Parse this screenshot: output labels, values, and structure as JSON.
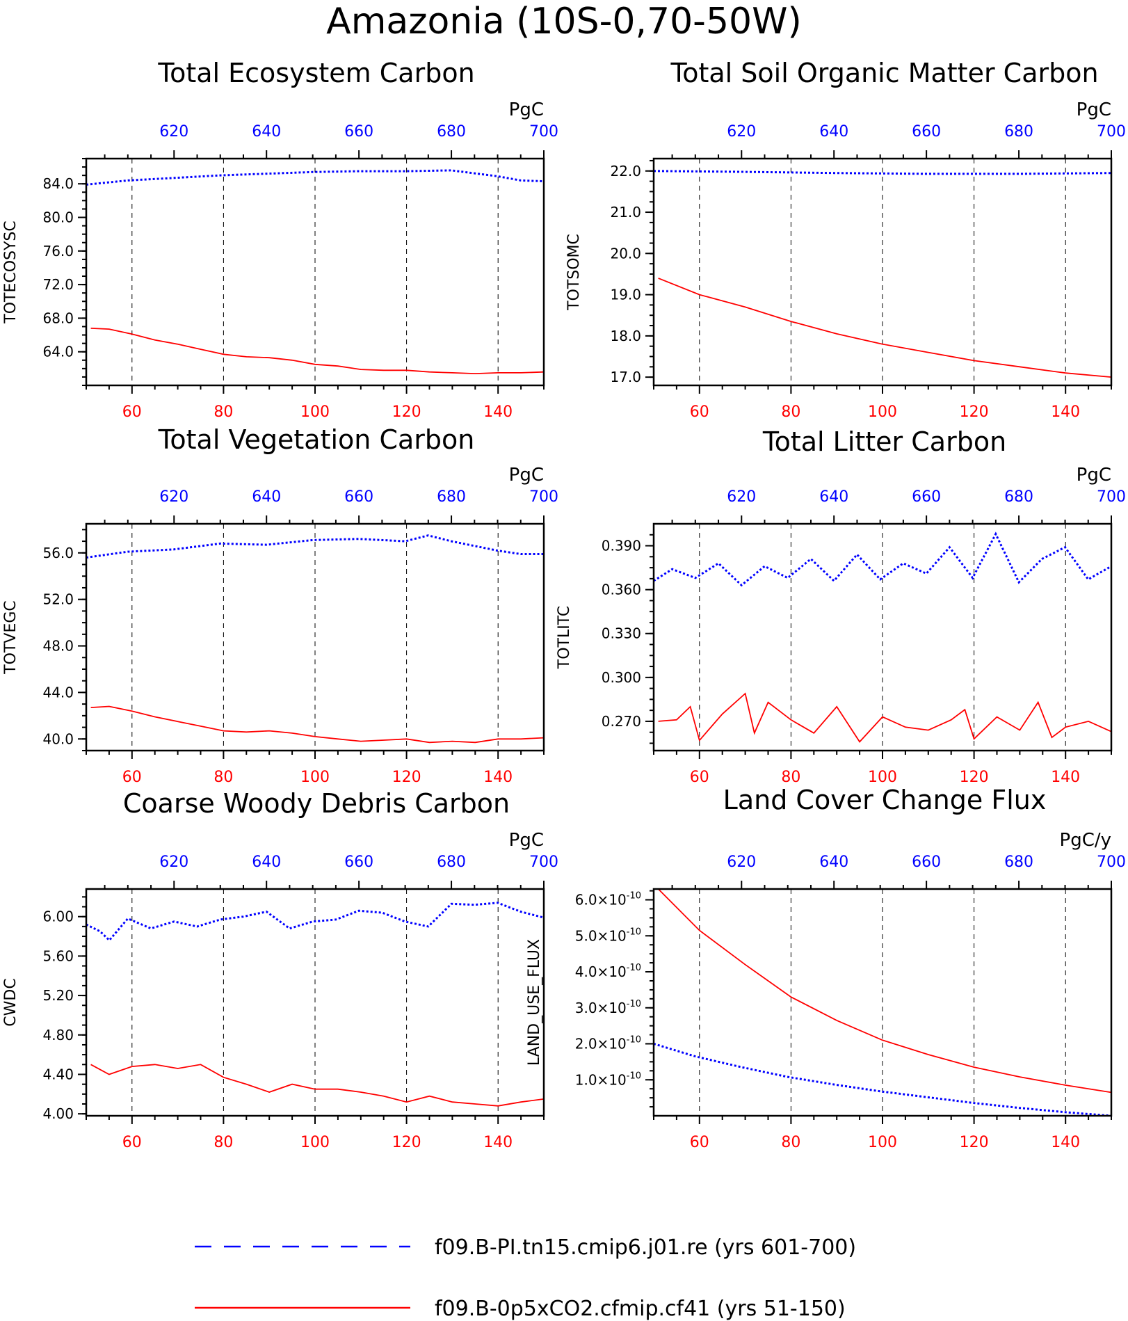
{
  "figure_title": "Amazonia (10S-0,70-50W)",
  "colors": {
    "series_a": "#0000ff",
    "series_b": "#ff0000",
    "frame": "#000000"
  },
  "legend": [
    {
      "label": "f09.B-PI.tn15.cmip6.j01.re (yrs 601-700)",
      "color": "#0000ff",
      "style": "dashed"
    },
    {
      "label": "f09.B-0p5xCO2.cfmip.cf41 (yrs 51-150)",
      "color": "#ff0000",
      "style": "solid"
    }
  ],
  "chart_data": [
    {
      "type": "line",
      "title": "Total Ecosystem Carbon",
      "ylabel": "TOTECOSYSC",
      "units": "PgC",
      "xlim": [
        50,
        150
      ],
      "xlim_top": [
        601,
        700
      ],
      "ylim": [
        60.0,
        87.0
      ],
      "x_ticks": [
        60,
        80,
        100,
        120,
        140
      ],
      "x_top_ticks": [
        620,
        640,
        660,
        680,
        700
      ],
      "y_ticks": [
        "64.0",
        "68.0",
        "72.0",
        "76.0",
        "80.0",
        "84.0"
      ],
      "grid": "vertical dashed",
      "series": [
        {
          "name": "f09.B-PI.tn15.cmip6.j01.re (yrs 601-700)",
          "axis": "top",
          "style": "dotted",
          "x": [
            601,
            610,
            620,
            630,
            640,
            650,
            660,
            670,
            680,
            690,
            695,
            700
          ],
          "y": [
            83.9,
            84.4,
            84.7,
            85.0,
            85.2,
            85.4,
            85.5,
            85.5,
            85.6,
            84.9,
            84.4,
            84.3
          ]
        },
        {
          "name": "f09.B-0p5xCO2.cfmip.cf41 (yrs 51-150)",
          "axis": "bottom",
          "style": "solid",
          "x": [
            51,
            55,
            60,
            65,
            70,
            75,
            80,
            85,
            90,
            95,
            100,
            105,
            110,
            115,
            120,
            125,
            130,
            135,
            140,
            145,
            150
          ],
          "y": [
            66.8,
            66.7,
            66.1,
            65.4,
            64.9,
            64.3,
            63.7,
            63.4,
            63.3,
            63.0,
            62.5,
            62.3,
            61.9,
            61.8,
            61.8,
            61.6,
            61.5,
            61.4,
            61.5,
            61.5,
            61.6
          ]
        }
      ]
    },
    {
      "type": "line",
      "title": "Total Soil Organic Matter Carbon",
      "ylabel": "TOTSOMC",
      "units": "PgC",
      "xlim": [
        50,
        150
      ],
      "xlim_top": [
        601,
        700
      ],
      "ylim": [
        16.8,
        22.3
      ],
      "x_ticks": [
        60,
        80,
        100,
        120,
        140
      ],
      "x_top_ticks": [
        620,
        640,
        660,
        680,
        700
      ],
      "y_ticks": [
        "17.0",
        "18.0",
        "19.0",
        "20.0",
        "21.0",
        "22.0"
      ],
      "grid": "vertical dashed",
      "series": [
        {
          "name": "f09.B-PI.tn15.cmip6.j01.re (yrs 601-700)",
          "axis": "top",
          "style": "dotted",
          "x": [
            601,
            620,
            640,
            660,
            680,
            700
          ],
          "y": [
            22.0,
            21.98,
            21.95,
            21.93,
            21.93,
            21.95
          ]
        },
        {
          "name": "f09.B-0p5xCO2.cfmip.cf41 (yrs 51-150)",
          "axis": "bottom",
          "style": "solid",
          "x": [
            51,
            60,
            70,
            80,
            90,
            100,
            110,
            120,
            130,
            140,
            150
          ],
          "y": [
            19.4,
            19.0,
            18.7,
            18.35,
            18.05,
            17.8,
            17.6,
            17.4,
            17.25,
            17.1,
            17.0
          ]
        }
      ]
    },
    {
      "type": "line",
      "title": "Total Vegetation Carbon",
      "ylabel": "TOTVEGC",
      "units": "PgC",
      "xlim": [
        50,
        150
      ],
      "xlim_top": [
        601,
        700
      ],
      "ylim": [
        39.0,
        58.5
      ],
      "x_ticks": [
        60,
        80,
        100,
        120,
        140
      ],
      "x_top_ticks": [
        620,
        640,
        660,
        680,
        700
      ],
      "y_ticks": [
        "40.0",
        "44.0",
        "48.0",
        "52.0",
        "56.0"
      ],
      "grid": "vertical dashed",
      "series": [
        {
          "name": "f09.B-PI.tn15.cmip6.j01.re (yrs 601-700)",
          "axis": "top",
          "style": "dotted",
          "x": [
            601,
            610,
            620,
            630,
            640,
            650,
            660,
            670,
            675,
            680,
            690,
            695,
            700
          ],
          "y": [
            55.6,
            56.1,
            56.3,
            56.8,
            56.7,
            57.1,
            57.2,
            57.0,
            57.5,
            57.0,
            56.2,
            55.9,
            55.9
          ]
        },
        {
          "name": "f09.B-0p5xCO2.cfmip.cf41 (yrs 51-150)",
          "axis": "bottom",
          "style": "solid",
          "x": [
            51,
            55,
            60,
            65,
            70,
            75,
            80,
            85,
            90,
            95,
            100,
            105,
            110,
            115,
            120,
            125,
            130,
            135,
            140,
            145,
            150
          ],
          "y": [
            42.7,
            42.8,
            42.4,
            41.9,
            41.5,
            41.1,
            40.7,
            40.6,
            40.7,
            40.5,
            40.2,
            40.0,
            39.8,
            39.9,
            40.0,
            39.7,
            39.8,
            39.7,
            40.0,
            40.0,
            40.1
          ]
        }
      ]
    },
    {
      "type": "line",
      "title": "Total Litter Carbon",
      "ylabel": "TOTLITC",
      "units": "PgC",
      "xlim": [
        50,
        150
      ],
      "xlim_top": [
        601,
        700
      ],
      "ylim": [
        0.25,
        0.405
      ],
      "x_ticks": [
        60,
        80,
        100,
        120,
        140
      ],
      "x_top_ticks": [
        620,
        640,
        660,
        680,
        700
      ],
      "y_ticks": [
        "0.270",
        "0.300",
        "0.330",
        "0.360",
        "0.390"
      ],
      "grid": "vertical dashed",
      "series": [
        {
          "name": "f09.B-PI.tn15.cmip6.j01.re (yrs 601-700)",
          "axis": "top",
          "style": "dotted",
          "x": [
            601,
            605,
            610,
            615,
            620,
            625,
            630,
            635,
            640,
            645,
            650,
            655,
            660,
            665,
            670,
            675,
            680,
            685,
            690,
            695,
            700
          ],
          "y": [
            0.366,
            0.374,
            0.368,
            0.378,
            0.363,
            0.376,
            0.368,
            0.381,
            0.366,
            0.384,
            0.367,
            0.378,
            0.371,
            0.389,
            0.368,
            0.398,
            0.365,
            0.381,
            0.389,
            0.367,
            0.376
          ]
        },
        {
          "name": "f09.B-0p5xCO2.cfmip.cf41 (yrs 51-150)",
          "axis": "bottom",
          "style": "solid",
          "x": [
            51,
            55,
            58,
            60,
            65,
            70,
            72,
            75,
            80,
            85,
            90,
            95,
            100,
            105,
            110,
            115,
            118,
            120,
            125,
            130,
            134,
            137,
            140,
            145,
            150
          ],
          "y": [
            0.27,
            0.271,
            0.28,
            0.257,
            0.275,
            0.289,
            0.262,
            0.283,
            0.271,
            0.262,
            0.28,
            0.256,
            0.273,
            0.266,
            0.264,
            0.271,
            0.278,
            0.258,
            0.273,
            0.264,
            0.283,
            0.259,
            0.266,
            0.27,
            0.263
          ]
        }
      ]
    },
    {
      "type": "line",
      "title": "Coarse Woody Debris Carbon",
      "ylabel": "CWDC",
      "units": "PgC",
      "xlim": [
        50,
        150
      ],
      "xlim_top": [
        601,
        700
      ],
      "ylim": [
        3.98,
        6.28
      ],
      "x_ticks": [
        60,
        80,
        100,
        120,
        140
      ],
      "x_top_ticks": [
        620,
        640,
        660,
        680,
        700
      ],
      "y_ticks": [
        "4.00",
        "4.40",
        "4.80",
        "5.20",
        "5.60",
        "6.00"
      ],
      "grid": "vertical dashed",
      "series": [
        {
          "name": "f09.B-PI.tn15.cmip6.j01.re (yrs 601-700)",
          "axis": "top",
          "style": "dotted",
          "x": [
            601,
            604,
            606,
            610,
            615,
            620,
            625,
            630,
            635,
            640,
            645,
            650,
            655,
            660,
            665,
            670,
            675,
            680,
            685,
            690,
            695,
            700
          ],
          "y": [
            5.92,
            5.85,
            5.76,
            5.98,
            5.88,
            5.95,
            5.9,
            5.97,
            6.0,
            6.05,
            5.88,
            5.95,
            5.97,
            6.06,
            6.04,
            5.95,
            5.9,
            6.13,
            6.12,
            6.14,
            6.05,
            5.99
          ]
        },
        {
          "name": "f09.B-0p5xCO2.cfmip.cf41 (yrs 51-150)",
          "axis": "bottom",
          "style": "solid",
          "x": [
            51,
            55,
            60,
            65,
            70,
            75,
            80,
            85,
            90,
            95,
            100,
            105,
            110,
            115,
            120,
            125,
            130,
            135,
            140,
            145,
            150
          ],
          "y": [
            4.5,
            4.4,
            4.48,
            4.5,
            4.46,
            4.5,
            4.37,
            4.3,
            4.22,
            4.3,
            4.25,
            4.25,
            4.22,
            4.18,
            4.12,
            4.18,
            4.12,
            4.1,
            4.08,
            4.12,
            4.15
          ]
        }
      ]
    },
    {
      "type": "line",
      "title": "Land Cover Change Flux",
      "ylabel": "LAND_USE_FLUX",
      "units": "PgC/y",
      "xlim": [
        50,
        150
      ],
      "xlim_top": [
        601,
        700
      ],
      "ylim": [
        0,
        6.3e-10
      ],
      "x_ticks": [
        60,
        80,
        100,
        120,
        140
      ],
      "x_top_ticks": [
        620,
        640,
        660,
        680,
        700
      ],
      "y_ticks": [
        "1.0",
        "2.0",
        "3.0",
        "4.0",
        "5.0",
        "6.0"
      ],
      "y_tick_exponent": "-10",
      "grid": "vertical dashed",
      "series": [
        {
          "name": "f09.B-PI.tn15.cmip6.j01.re (yrs 601-700)",
          "axis": "top",
          "style": "dotted",
          "x": [
            601,
            610,
            620,
            630,
            640,
            650,
            660,
            670,
            680,
            690,
            700
          ],
          "y": [
            2e-10,
            1.65e-10,
            1.35e-10,
            1.08e-10,
            8.7e-11,
            6.8e-11,
            5.2e-11,
            3.6e-11,
            2.2e-11,
            1e-11,
            0.0
          ]
        },
        {
          "name": "f09.B-0p5xCO2.cfmip.cf41 (yrs 51-150)",
          "axis": "bottom",
          "style": "solid",
          "x": [
            51,
            60,
            70,
            80,
            90,
            100,
            110,
            120,
            130,
            140,
            150
          ],
          "y": [
            6.3e-10,
            5.15e-10,
            4.2e-10,
            3.3e-10,
            2.65e-10,
            2.1e-10,
            1.7e-10,
            1.35e-10,
            1.08e-10,
            8.5e-11,
            6.5e-11
          ]
        }
      ]
    }
  ]
}
